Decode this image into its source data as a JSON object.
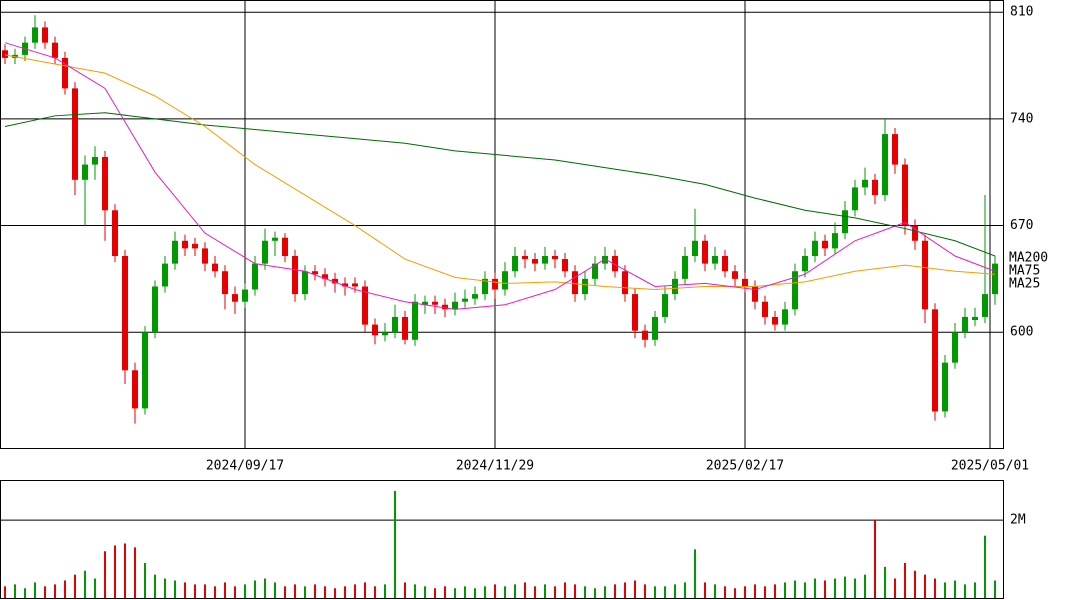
{
  "chart_data": [
    {
      "type": "candlestick",
      "up_color": "#009900",
      "down_color": "#e60000",
      "xlim": [
        -0.5,
        99.8
      ],
      "xticks": [
        {
          "value": 24,
          "label": "2024/09/17"
        },
        {
          "value": 49,
          "label": "2024/11/29"
        },
        {
          "value": 74,
          "label": "2025/02/17"
        },
        {
          "value": 98.5,
          "label": "2025/05/01"
        }
      ],
      "ylim": [
        524,
        818
      ],
      "yticks": [
        600,
        670,
        740,
        810
      ],
      "grid": true,
      "ohlc": [
        [
          785,
          789,
          776,
          780
        ],
        [
          780,
          786,
          776,
          782
        ],
        [
          782,
          794,
          778,
          790
        ],
        [
          790,
          808,
          786,
          800
        ],
        [
          800,
          804,
          786,
          790
        ],
        [
          790,
          794,
          776,
          780
        ],
        [
          780,
          784,
          756,
          760
        ],
        [
          760,
          764,
          690,
          700
        ],
        [
          700,
          716,
          670,
          710
        ],
        [
          710,
          722,
          700,
          715
        ],
        [
          715,
          719,
          660,
          680
        ],
        [
          680,
          684,
          646,
          650
        ],
        [
          650,
          654,
          566,
          575
        ],
        [
          575,
          580,
          540,
          550
        ],
        [
          550,
          604,
          546,
          600
        ],
        [
          600,
          634,
          596,
          630
        ],
        [
          630,
          650,
          626,
          645
        ],
        [
          645,
          666,
          641,
          660
        ],
        [
          660,
          664,
          650,
          655
        ],
        [
          658,
          662,
          650,
          655
        ],
        [
          655,
          659,
          640,
          645
        ],
        [
          645,
          650,
          636,
          640
        ],
        [
          640,
          644,
          615,
          625
        ],
        [
          625,
          630,
          612,
          620
        ],
        [
          620,
          632,
          616,
          628
        ],
        [
          628,
          650,
          624,
          645
        ],
        [
          645,
          668,
          641,
          660
        ],
        [
          660,
          666,
          650,
          662
        ],
        [
          662,
          665,
          646,
          650
        ],
        [
          650,
          654,
          620,
          625
        ],
        [
          625,
          644,
          621,
          640
        ],
        [
          640,
          644,
          634,
          638
        ],
        [
          638,
          642,
          630,
          635
        ],
        [
          635,
          639,
          626,
          632
        ],
        [
          632,
          636,
          624,
          630
        ],
        [
          632,
          636,
          626,
          630
        ],
        [
          630,
          634,
          600,
          605
        ],
        [
          605,
          609,
          592,
          598
        ],
        [
          598,
          606,
          594,
          600
        ],
        [
          600,
          618,
          596,
          610
        ],
        [
          610,
          614,
          592,
          595
        ],
        [
          595,
          625,
          591,
          620
        ],
        [
          618,
          624,
          612,
          620
        ],
        [
          620,
          624,
          612,
          618
        ],
        [
          618,
          622,
          610,
          615
        ],
        [
          615,
          626,
          611,
          620
        ],
        [
          620,
          628,
          616,
          622
        ],
        [
          622,
          630,
          618,
          625
        ],
        [
          625,
          640,
          621,
          635
        ],
        [
          635,
          639,
          622,
          628
        ],
        [
          628,
          646,
          624,
          640
        ],
        [
          640,
          656,
          636,
          650
        ],
        [
          650,
          654,
          642,
          648
        ],
        [
          648,
          652,
          640,
          645
        ],
        [
          645,
          656,
          641,
          650
        ],
        [
          650,
          654,
          642,
          648
        ],
        [
          648,
          652,
          636,
          640
        ],
        [
          640,
          644,
          620,
          625
        ],
        [
          625,
          640,
          621,
          635
        ],
        [
          635,
          650,
          631,
          645
        ],
        [
          645,
          656,
          641,
          650
        ],
        [
          650,
          654,
          636,
          640
        ],
        [
          640,
          644,
          620,
          625
        ],
        [
          625,
          629,
          596,
          601
        ],
        [
          601,
          605,
          590,
          595
        ],
        [
          595,
          614,
          591,
          610
        ],
        [
          610,
          630,
          606,
          625
        ],
        [
          625,
          640,
          621,
          635
        ],
        [
          635,
          656,
          631,
          650
        ],
        [
          650,
          681,
          646,
          660
        ],
        [
          660,
          664,
          640,
          645
        ],
        [
          645,
          656,
          641,
          650
        ],
        [
          650,
          654,
          636,
          640
        ],
        [
          640,
          644,
          630,
          635
        ],
        [
          635,
          639,
          626,
          630
        ],
        [
          630,
          634,
          615,
          620
        ],
        [
          620,
          624,
          605,
          610
        ],
        [
          610,
          614,
          601,
          605
        ],
        [
          605,
          620,
          601,
          615
        ],
        [
          615,
          645,
          611,
          640
        ],
        [
          640,
          655,
          636,
          650
        ],
        [
          650,
          666,
          646,
          660
        ],
        [
          660,
          664,
          650,
          655
        ],
        [
          655,
          672,
          651,
          665
        ],
        [
          665,
          686,
          661,
          680
        ],
        [
          680,
          700,
          676,
          695
        ],
        [
          695,
          708,
          690,
          700
        ],
        [
          700,
          704,
          684,
          690
        ],
        [
          690,
          740,
          686,
          730
        ],
        [
          730,
          734,
          704,
          710
        ],
        [
          710,
          714,
          664,
          670
        ],
        [
          670,
          674,
          654,
          660
        ],
        [
          660,
          664,
          606,
          615
        ],
        [
          615,
          619,
          542,
          548
        ],
        [
          548,
          585,
          544,
          580
        ],
        [
          580,
          606,
          576,
          600
        ],
        [
          600,
          616,
          596,
          610
        ],
        [
          608,
          616,
          604,
          610
        ],
        [
          610,
          690,
          606,
          625
        ],
        [
          625,
          650,
          618,
          645
        ]
      ],
      "lines": [
        {
          "name": "MA200",
          "color": "#006a00",
          "x": [
            0,
            5,
            10,
            15,
            20,
            25,
            30,
            35,
            40,
            45,
            50,
            55,
            60,
            65,
            70,
            75,
            80,
            85,
            90,
            95,
            99
          ],
          "values": [
            735,
            742,
            744,
            740,
            736,
            733,
            730,
            727,
            724,
            719,
            716,
            713,
            708,
            703,
            697,
            688,
            680,
            675,
            668,
            660,
            650
          ]
        },
        {
          "name": "MA75",
          "color": "#f0a000",
          "x": [
            0,
            5,
            10,
            15,
            20,
            25,
            30,
            35,
            40,
            45,
            50,
            55,
            60,
            65,
            70,
            75,
            80,
            85,
            90,
            95,
            99
          ],
          "values": [
            782,
            776,
            770,
            755,
            735,
            710,
            690,
            670,
            648,
            636,
            632,
            633,
            630,
            628,
            630,
            630,
            633,
            640,
            644,
            640,
            638
          ]
        },
        {
          "name": "MA25",
          "color": "#e020c0",
          "x": [
            0,
            5,
            10,
            15,
            20,
            25,
            30,
            35,
            40,
            45,
            50,
            55,
            60,
            65,
            70,
            75,
            80,
            85,
            90,
            95,
            99
          ],
          "values": [
            790,
            780,
            760,
            705,
            665,
            645,
            640,
            628,
            620,
            615,
            618,
            628,
            648,
            630,
            632,
            628,
            638,
            660,
            672,
            650,
            640
          ]
        }
      ]
    },
    {
      "type": "bar",
      "xlim": [
        -0.5,
        99.8
      ],
      "ylim": [
        0,
        3030000
      ],
      "yticks": [
        {
          "value": 2000000,
          "label": "2M"
        }
      ],
      "grid": true,
      "values": [
        300000,
        350000,
        250000,
        400000,
        300000,
        350000,
        450000,
        600000,
        700000,
        500000,
        1200000,
        1350000,
        1400000,
        1300000,
        900000,
        600000,
        500000,
        450000,
        400000,
        350000,
        350000,
        300000,
        400000,
        300000,
        350000,
        450000,
        500000,
        400000,
        300000,
        350000,
        300000,
        350000,
        300000,
        250000,
        300000,
        350000,
        400000,
        300000,
        350000,
        2750000,
        400000,
        350000,
        300000,
        250000,
        300000,
        250000,
        300000,
        250000,
        300000,
        350000,
        300000,
        350000,
        400000,
        300000,
        350000,
        300000,
        400000,
        350000,
        300000,
        250000,
        300000,
        350000,
        400000,
        450000,
        350000,
        300000,
        300000,
        350000,
        400000,
        1250000,
        400000,
        350000,
        300000,
        250000,
        300000,
        350000,
        300000,
        350000,
        400000,
        450000,
        400000,
        500000,
        450000,
        500000,
        550000,
        500000,
        600000,
        2000000,
        800000,
        500000,
        900000,
        700000,
        600000,
        500000,
        400000,
        450000,
        350000,
        400000,
        1600000,
        450000
      ]
    }
  ]
}
